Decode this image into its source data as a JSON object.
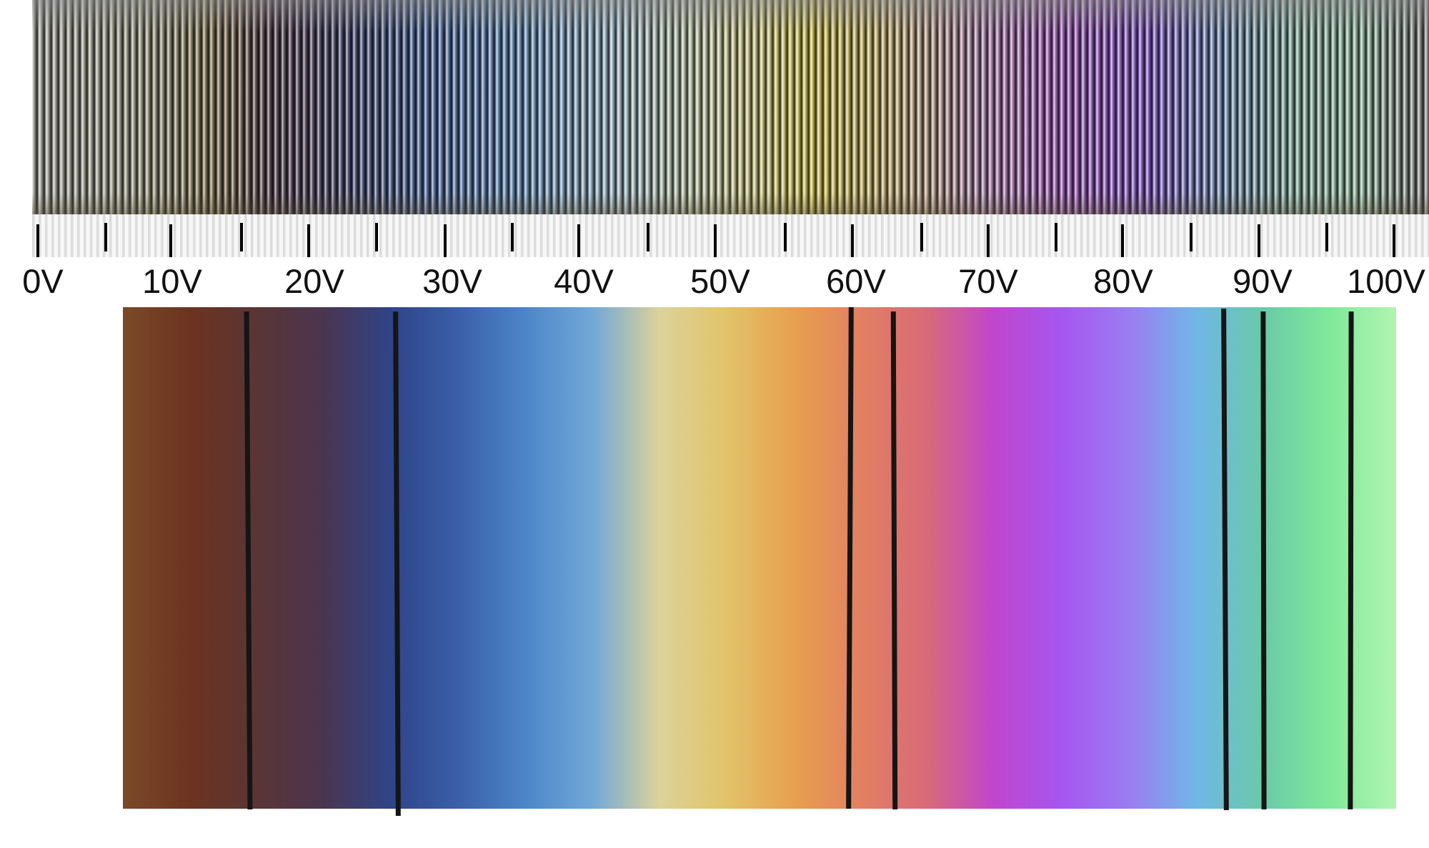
{
  "scale": {
    "unit": "V",
    "labels": [
      "0V",
      "10V",
      "20V",
      "30V",
      "40V",
      "50V",
      "60V",
      "70V",
      "80V",
      "90V",
      "100V"
    ]
  },
  "band_colors": [
    "#7a4a28",
    "#6c3320",
    "#5a3535",
    "#4a3550",
    "#2f4488",
    "#3a5fa8",
    "#4c86c8",
    "#70a8d8",
    "#dcd29a",
    "#e2c36a",
    "#e8a04e",
    "#e28062",
    "#d86a78",
    "#c046cc",
    "#a656f0",
    "#9a7cf0",
    "#70b6e8",
    "#6acaa8",
    "#80e89a",
    "#b0f5b0"
  ]
}
